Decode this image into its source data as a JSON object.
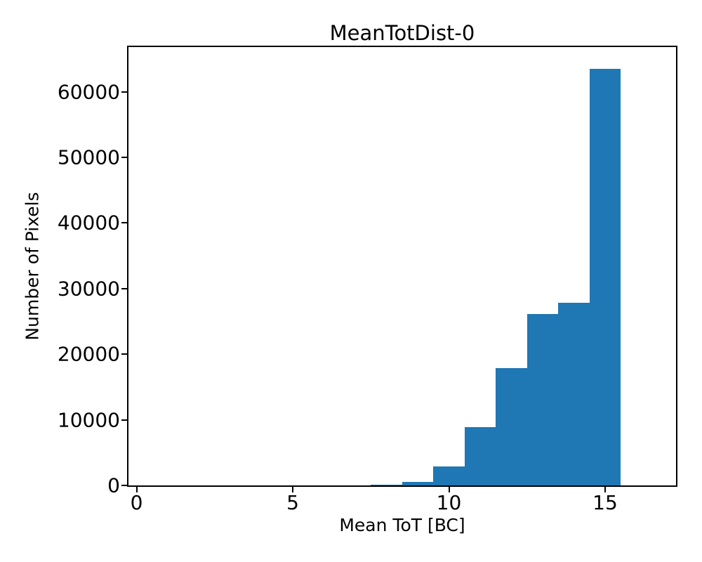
{
  "chart_data": {
    "type": "bar",
    "subtype": "histogram",
    "title": "MeanTotDist-0",
    "xlabel": "Mean ToT [BC]",
    "ylabel": "Number of Pixels",
    "bar_color": "#1f77b4",
    "axis_color": "#000000",
    "background_color": "#ffffff",
    "bin_edges": [
      7.5,
      8.5,
      9.5,
      10.5,
      11.5,
      12.5,
      13.5,
      14.5,
      15.5
    ],
    "counts": [
      150,
      570,
      2850,
      8900,
      17900,
      26100,
      27800,
      63450
    ],
    "x_ticks": [
      0,
      5,
      10,
      15
    ],
    "y_ticks": [
      0,
      10000,
      20000,
      30000,
      40000,
      50000,
      60000
    ],
    "xlim": [
      -0.26,
      17.27
    ],
    "ylim": [
      0,
      66800
    ],
    "grid": false,
    "legend": false
  }
}
